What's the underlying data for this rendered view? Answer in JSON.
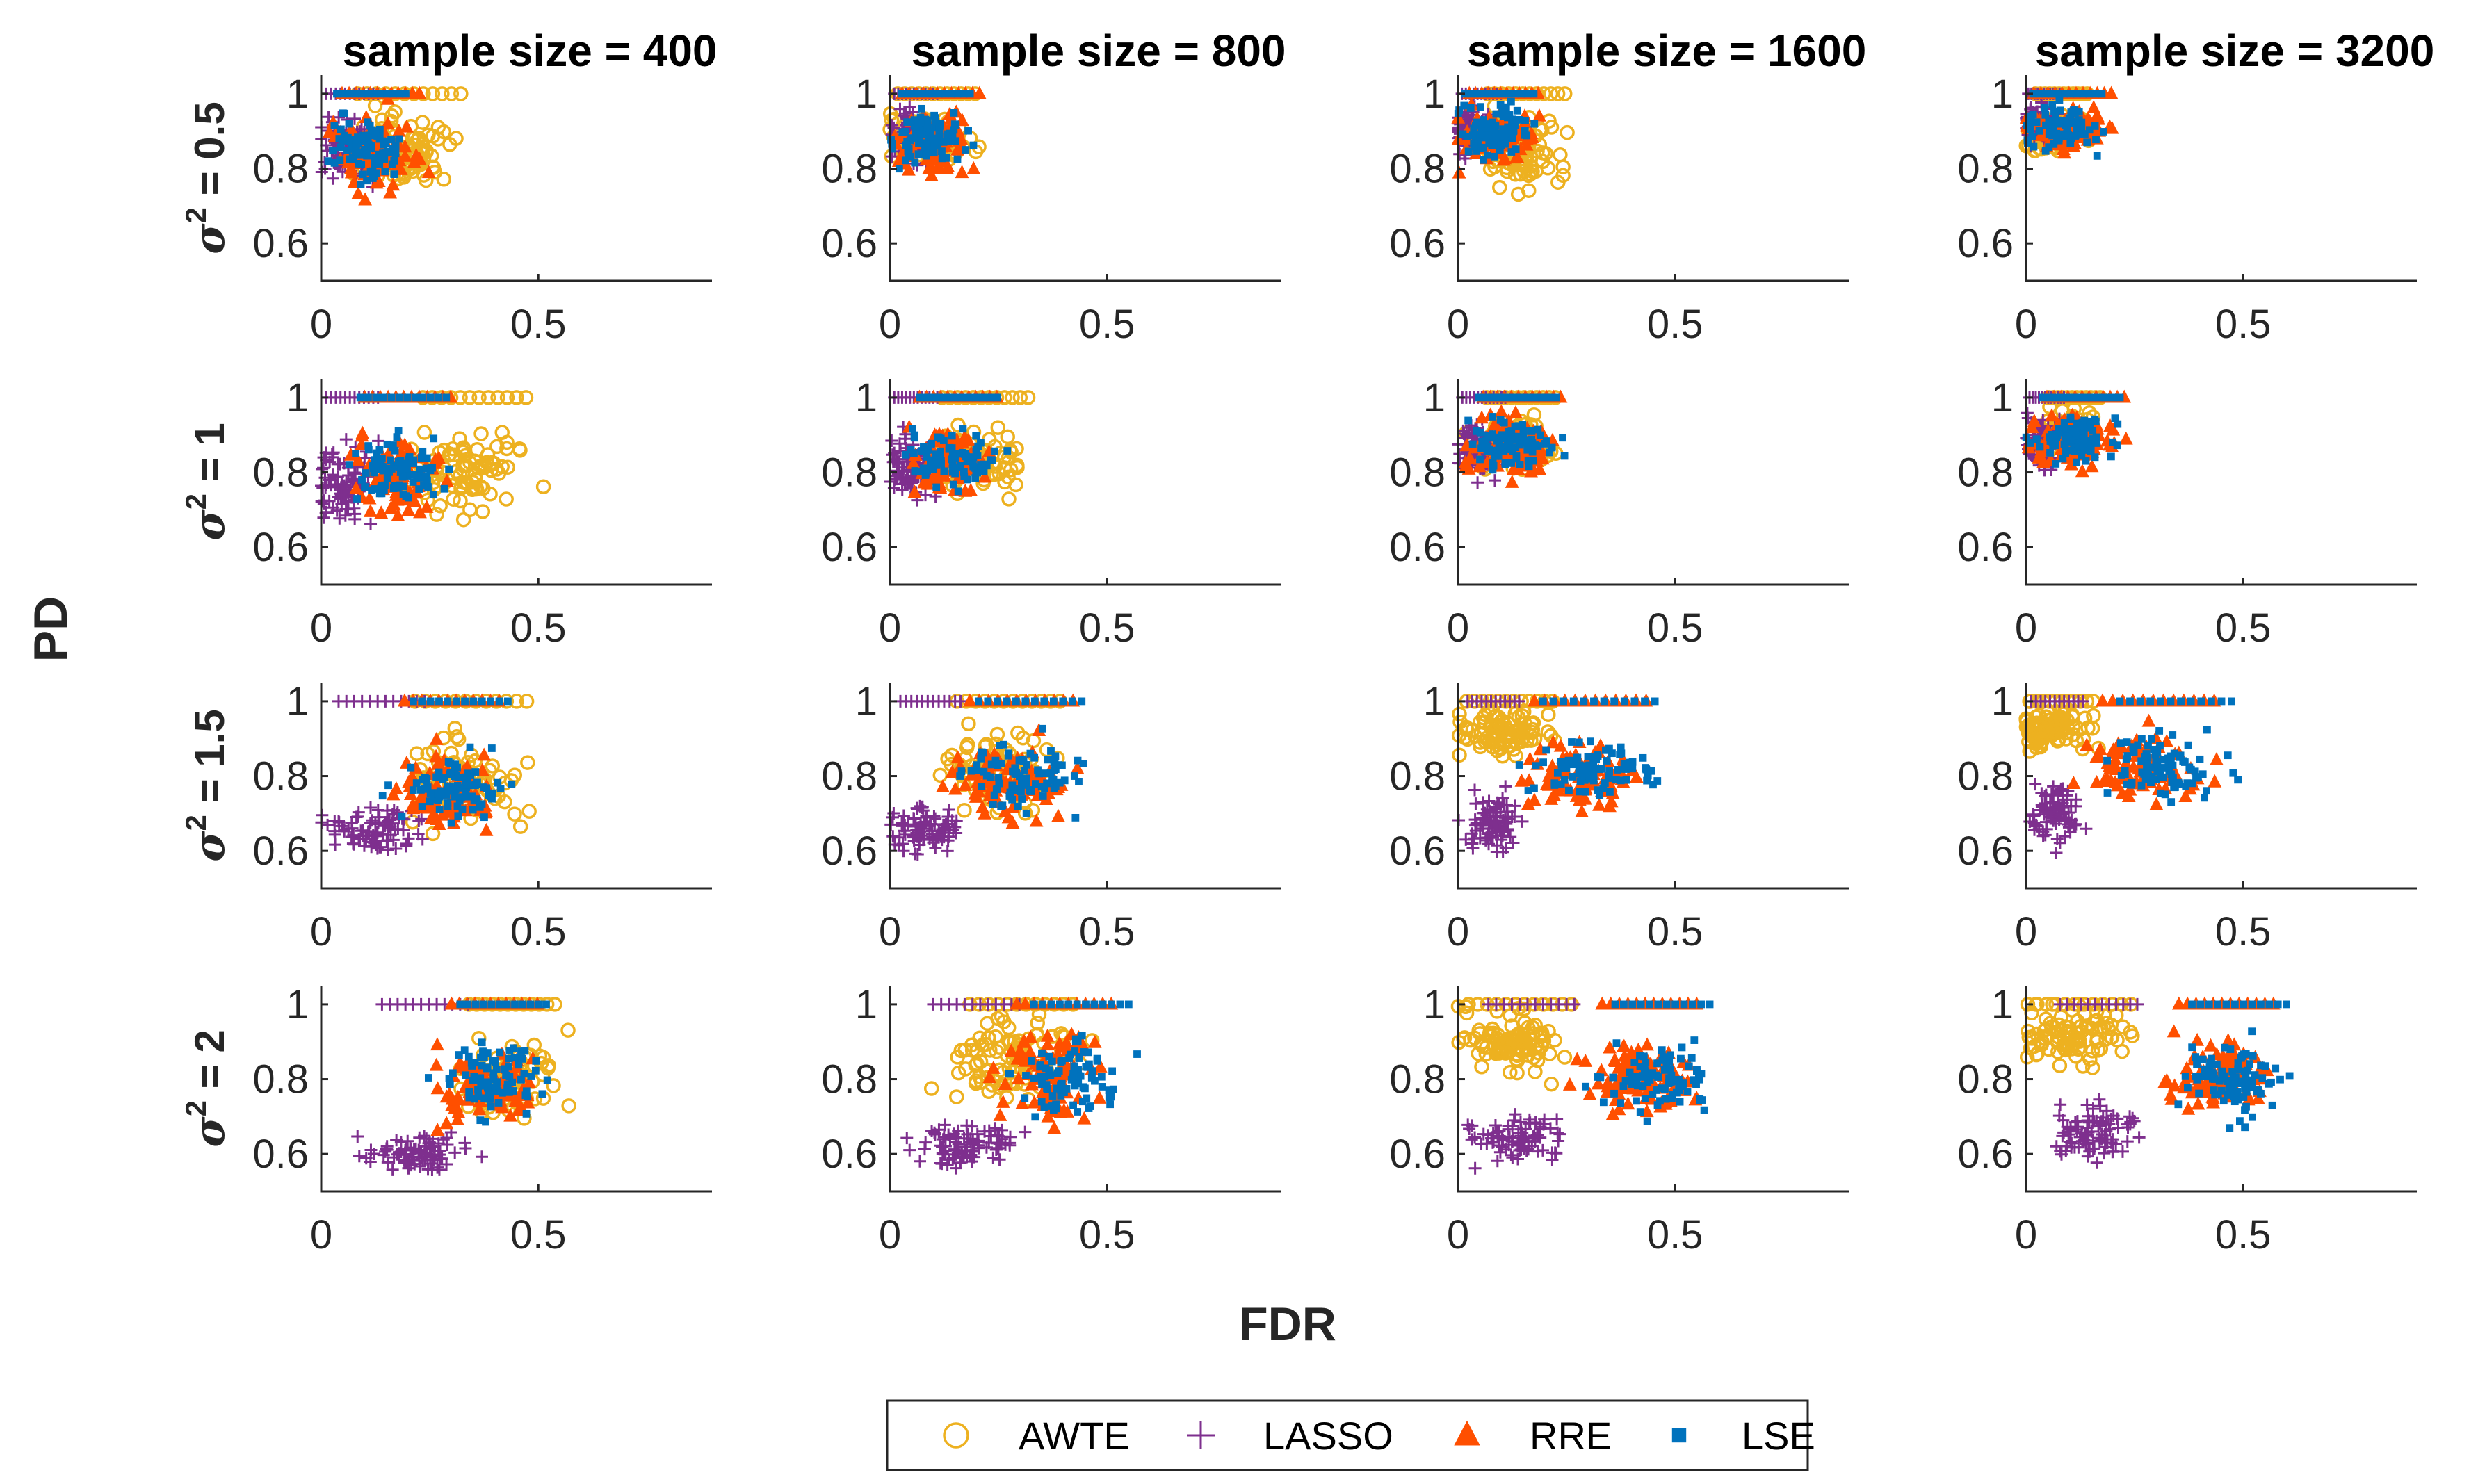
{
  "chart_data": {
    "type": "scatter",
    "xlabel": "FDR",
    "ylabel": "PD",
    "xlim": [
      0,
      0.9
    ],
    "ylim": [
      0.5,
      1.05
    ],
    "xticks": [
      "0",
      "0.5"
    ],
    "yticks": [
      "0.6",
      "0.8",
      "1"
    ],
    "column_titles": [
      "sample size = 400",
      "sample size = 800",
      "sample size = 1600",
      "sample size = 3200"
    ],
    "row_labels": [
      {
        "sym": "σ",
        "sup": "2",
        "rest": " = 0.5"
      },
      {
        "sym": "σ",
        "sup": "2",
        "rest": " = 1"
      },
      {
        "sym": "σ",
        "sup": "2",
        "rest": " = 1.5"
      },
      {
        "sym": "σ",
        "sup": "2",
        "rest": " = 2"
      }
    ],
    "legend": {
      "position": "bottom-center",
      "entries": [
        {
          "name": "AWTE",
          "marker": "circle",
          "color": "#EDB120"
        },
        {
          "name": "LASSO",
          "marker": "plus",
          "color": "#7E2F8E"
        },
        {
          "name": "RRE",
          "marker": "triangle",
          "color": "#FF4F00"
        },
        {
          "name": "LSE",
          "marker": "square",
          "color": "#0072BD"
        }
      ]
    },
    "series": [
      {
        "name": "AWTE",
        "clouds": [
          [
            [
              0.18,
              0.84,
              0.12,
              0.09
            ],
            [
              0.09,
              0.88,
              0.09,
              0.06
            ],
            [
              0.14,
              0.85,
              0.09,
              0.08
            ],
            [
              0.07,
              0.89,
              0.06,
              0.05
            ]
          ],
          [
            [
              0.33,
              0.8,
              0.12,
              0.09
            ],
            [
              0.2,
              0.84,
              0.1,
              0.08
            ],
            [
              0.13,
              0.88,
              0.08,
              0.06
            ],
            [
              0.1,
              0.9,
              0.06,
              0.05
            ]
          ],
          [
            [
              0.32,
              0.78,
              0.13,
              0.1
            ],
            [
              0.25,
              0.82,
              0.12,
              0.09
            ],
            [
              0.1,
              0.92,
              0.1,
              0.06
            ],
            [
              0.06,
              0.93,
              0.08,
              0.05
            ]
          ],
          [
            [
              0.42,
              0.8,
              0.1,
              0.1
            ],
            [
              0.28,
              0.86,
              0.12,
              0.1
            ],
            [
              0.12,
              0.9,
              0.12,
              0.08
            ],
            [
              0.1,
              0.92,
              0.12,
              0.07
            ]
          ]
        ]
      },
      {
        "name": "LASSO",
        "clouds": [
          [
            [
              0.06,
              0.86,
              0.06,
              0.08
            ],
            [
              0.05,
              0.88,
              0.05,
              0.06
            ],
            [
              0.04,
              0.9,
              0.05,
              0.05
            ],
            [
              0.03,
              0.92,
              0.04,
              0.04
            ]
          ],
          [
            [
              0.06,
              0.78,
              0.06,
              0.1
            ],
            [
              0.05,
              0.82,
              0.05,
              0.08
            ],
            [
              0.05,
              0.86,
              0.05,
              0.06
            ],
            [
              0.04,
              0.88,
              0.04,
              0.06
            ]
          ],
          [
            [
              0.12,
              0.66,
              0.1,
              0.06
            ],
            [
              0.08,
              0.66,
              0.07,
              0.06
            ],
            [
              0.07,
              0.68,
              0.06,
              0.07
            ],
            [
              0.06,
              0.7,
              0.06,
              0.07
            ]
          ],
          [
            [
              0.22,
              0.6,
              0.1,
              0.05
            ],
            [
              0.18,
              0.62,
              0.1,
              0.05
            ],
            [
              0.15,
              0.64,
              0.1,
              0.06
            ],
            [
              0.15,
              0.66,
              0.09,
              0.06
            ]
          ]
        ]
      },
      {
        "name": "RRE",
        "clouds": [
          [
            [
              0.12,
              0.84,
              0.09,
              0.09
            ],
            [
              0.1,
              0.86,
              0.09,
              0.07
            ],
            [
              0.09,
              0.88,
              0.08,
              0.06
            ],
            [
              0.09,
              0.9,
              0.09,
              0.05
            ]
          ],
          [
            [
              0.18,
              0.78,
              0.1,
              0.09
            ],
            [
              0.14,
              0.82,
              0.09,
              0.08
            ],
            [
              0.13,
              0.86,
              0.09,
              0.07
            ],
            [
              0.12,
              0.88,
              0.09,
              0.06
            ]
          ],
          [
            [
              0.28,
              0.76,
              0.11,
              0.09
            ],
            [
              0.28,
              0.78,
              0.12,
              0.09
            ],
            [
              0.28,
              0.8,
              0.13,
              0.09
            ],
            [
              0.28,
              0.82,
              0.13,
              0.08
            ]
          ],
          [
            [
              0.38,
              0.78,
              0.1,
              0.1
            ],
            [
              0.38,
              0.8,
              0.11,
              0.1
            ],
            [
              0.42,
              0.8,
              0.11,
              0.09
            ],
            [
              0.44,
              0.8,
              0.11,
              0.09
            ]
          ]
        ]
      },
      {
        "name": "LSE",
        "clouds": [
          [
            [
              0.1,
              0.86,
              0.08,
              0.08
            ],
            [
              0.09,
              0.88,
              0.08,
              0.07
            ],
            [
              0.08,
              0.9,
              0.08,
              0.06
            ],
            [
              0.08,
              0.91,
              0.08,
              0.05
            ]
          ],
          [
            [
              0.17,
              0.8,
              0.1,
              0.08
            ],
            [
              0.14,
              0.84,
              0.09,
              0.07
            ],
            [
              0.12,
              0.87,
              0.09,
              0.06
            ],
            [
              0.11,
              0.89,
              0.09,
              0.05
            ]
          ],
          [
            [
              0.3,
              0.78,
              0.11,
              0.08
            ],
            [
              0.3,
              0.8,
              0.12,
              0.08
            ],
            [
              0.3,
              0.82,
              0.13,
              0.08
            ],
            [
              0.32,
              0.83,
              0.13,
              0.08
            ]
          ],
          [
            [
              0.4,
              0.8,
              0.1,
              0.09
            ],
            [
              0.42,
              0.8,
              0.11,
              0.09
            ],
            [
              0.45,
              0.8,
              0.11,
              0.09
            ],
            [
              0.47,
              0.8,
              0.11,
              0.09
            ]
          ]
        ]
      }
    ]
  }
}
